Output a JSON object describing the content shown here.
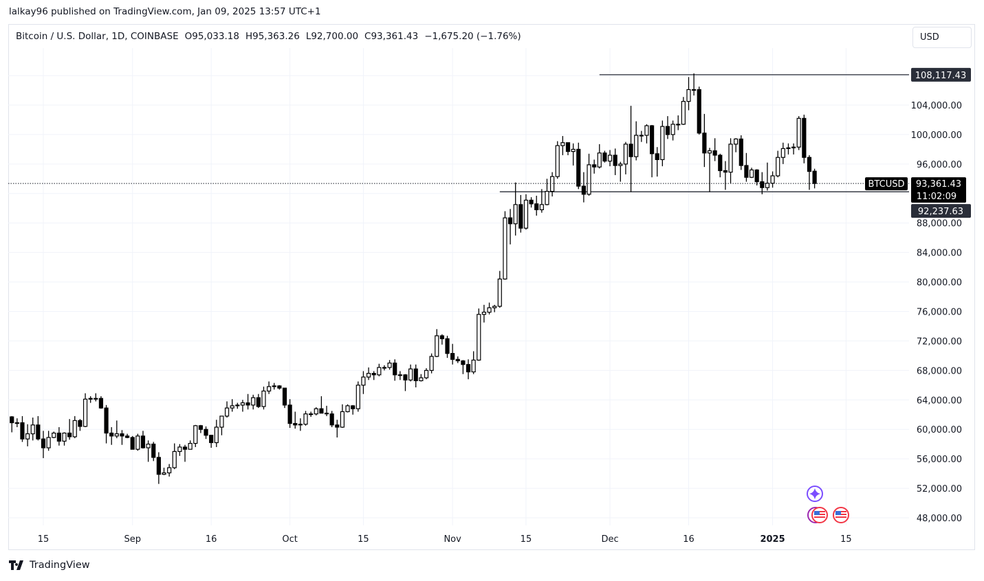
{
  "header": {
    "published": "lalkay96 published on TradingView.com, Jan 09, 2025 13:57 UTC+1"
  },
  "legend": {
    "symbol": "Bitcoin / U.S. Dollar, 1D, COINBASE",
    "open": "O95,033.18",
    "high": "H95,363.26",
    "low": "L92,700.00",
    "close": "C93,361.43",
    "change": "−1,675.20 (−1.76%)"
  },
  "currency_button": "USD",
  "footer": {
    "brand": "TradingView"
  },
  "icons": [
    "sparkle-event-icon",
    "us-flag-event-icon",
    "us-flag-event-icon"
  ],
  "colors": {
    "up_body": "#ffffff",
    "down_body": "#000000",
    "wick": "#000000",
    "grid": "#f0f3fa",
    "label_bg": "#2a2e39",
    "event_purple": "#7b4dff",
    "event_red": "#f23645"
  },
  "chart_data": {
    "type": "candlestick",
    "symbol_tag": "BTCUSD",
    "last_price": "93,361.43",
    "countdown": "11:02:09",
    "grid": true,
    "y_ticks": [
      {
        "v": 48000,
        "t": "48,000.00"
      },
      {
        "v": 52000,
        "t": "52,000.00"
      },
      {
        "v": 56000,
        "t": "56,000.00"
      },
      {
        "v": 60000,
        "t": "60,000.00"
      },
      {
        "v": 64000,
        "t": "64,000.00"
      },
      {
        "v": 68000,
        "t": "68,000.00"
      },
      {
        "v": 72000,
        "t": "72,000.00"
      },
      {
        "v": 76000,
        "t": "76,000.00"
      },
      {
        "v": 80000,
        "t": "80,000.00"
      },
      {
        "v": 84000,
        "t": "84,000.00"
      },
      {
        "v": 88000,
        "t": "88,000.00"
      },
      {
        "v": 96000,
        "t": "96,000.00"
      },
      {
        "v": 100000,
        "t": "100,000.00"
      },
      {
        "v": 104000,
        "t": "104,000.00"
      }
    ],
    "x_ticks": [
      {
        "d": "2024-08-15",
        "t": "15"
      },
      {
        "d": "2024-09-01",
        "t": "Sep"
      },
      {
        "d": "2024-09-16",
        "t": "16"
      },
      {
        "d": "2024-10-01",
        "t": "Oct"
      },
      {
        "d": "2024-10-15",
        "t": "15"
      },
      {
        "d": "2024-11-01",
        "t": "Nov"
      },
      {
        "d": "2024-11-15",
        "t": "15"
      },
      {
        "d": "2024-12-01",
        "t": "Dec"
      },
      {
        "d": "2024-12-16",
        "t": "16"
      },
      {
        "d": "2025-01-01",
        "t": "2025",
        "bold": true
      },
      {
        "d": "2025-01-15",
        "t": "15"
      }
    ],
    "horizontal_lines": [
      {
        "price": 108117.43,
        "label": "108,117.43",
        "from": "2024-11-29"
      },
      {
        "price": 92237.63,
        "label": "92,237.63",
        "from": "2024-11-10"
      }
    ],
    "candles_fields": [
      "date",
      "open",
      "high",
      "low",
      "close"
    ],
    "candles": [
      [
        "2024-08-09",
        61700,
        61800,
        59600,
        60900
      ],
      [
        "2024-08-10",
        60900,
        61500,
        60300,
        60900
      ],
      [
        "2024-08-11",
        60900,
        61800,
        58300,
        58700
      ],
      [
        "2024-08-12",
        58700,
        60700,
        57700,
        59400
      ],
      [
        "2024-08-13",
        59400,
        61600,
        58500,
        60600
      ],
      [
        "2024-08-14",
        60600,
        61800,
        58500,
        58700
      ],
      [
        "2024-08-15",
        58700,
        59800,
        56100,
        57500
      ],
      [
        "2024-08-16",
        57500,
        59800,
        57100,
        58900
      ],
      [
        "2024-08-17",
        58900,
        59700,
        58800,
        59500
      ],
      [
        "2024-08-18",
        59500,
        60300,
        57800,
        58400
      ],
      [
        "2024-08-19",
        58400,
        59600,
        57800,
        59500
      ],
      [
        "2024-08-20",
        59500,
        61400,
        58600,
        59000
      ],
      [
        "2024-08-21",
        59000,
        61800,
        58800,
        61200
      ],
      [
        "2024-08-22",
        61200,
        61400,
        59800,
        60400
      ],
      [
        "2024-08-23",
        60400,
        64900,
        60300,
        64100
      ],
      [
        "2024-08-24",
        64100,
        64500,
        63600,
        64200
      ],
      [
        "2024-08-25",
        64200,
        64900,
        63800,
        64200
      ],
      [
        "2024-08-26",
        64200,
        64500,
        62800,
        62900
      ],
      [
        "2024-08-27",
        62900,
        63300,
        58100,
        59500
      ],
      [
        "2024-08-28",
        59500,
        60300,
        57900,
        59100
      ],
      [
        "2024-08-29",
        59100,
        61200,
        58800,
        59400
      ],
      [
        "2024-08-30",
        59400,
        59900,
        57900,
        59100
      ],
      [
        "2024-08-31",
        59100,
        59400,
        58800,
        58900
      ],
      [
        "2024-09-01",
        58900,
        59100,
        57300,
        57300
      ],
      [
        "2024-09-02",
        57300,
        59400,
        57100,
        59100
      ],
      [
        "2024-09-03",
        59100,
        59800,
        57400,
        57500
      ],
      [
        "2024-09-04",
        57500,
        58500,
        55600,
        58000
      ],
      [
        "2024-09-05",
        58000,
        58300,
        55700,
        56200
      ],
      [
        "2024-09-06",
        56200,
        56900,
        52600,
        53900
      ],
      [
        "2024-09-07",
        53900,
        54800,
        53800,
        54100
      ],
      [
        "2024-09-08",
        54100,
        55300,
        53600,
        54800
      ],
      [
        "2024-09-09",
        54800,
        58100,
        54600,
        57000
      ],
      [
        "2024-09-10",
        57000,
        58000,
        56400,
        57600
      ],
      [
        "2024-09-11",
        57600,
        57900,
        55600,
        57300
      ],
      [
        "2024-09-12",
        57300,
        58500,
        57300,
        58100
      ],
      [
        "2024-09-13",
        58100,
        60600,
        57600,
        60500
      ],
      [
        "2024-09-14",
        60500,
        60600,
        59500,
        60000
      ],
      [
        "2024-09-15",
        60000,
        60400,
        58700,
        59200
      ],
      [
        "2024-09-16",
        59200,
        59200,
        57500,
        58200
      ],
      [
        "2024-09-17",
        58200,
        61300,
        57600,
        60300
      ],
      [
        "2024-09-18",
        60300,
        61800,
        59200,
        61800
      ],
      [
        "2024-09-19",
        61800,
        63800,
        61600,
        62900
      ],
      [
        "2024-09-20",
        62900,
        64100,
        62400,
        63200
      ],
      [
        "2024-09-21",
        63200,
        63600,
        62800,
        63300
      ],
      [
        "2024-09-22",
        63300,
        64000,
        62400,
        63600
      ],
      [
        "2024-09-23",
        63600,
        64800,
        62700,
        63300
      ],
      [
        "2024-09-24",
        63300,
        64700,
        62700,
        64300
      ],
      [
        "2024-09-25",
        64300,
        64800,
        62900,
        63100
      ],
      [
        "2024-09-26",
        63100,
        65800,
        62700,
        65200
      ],
      [
        "2024-09-27",
        65200,
        66500,
        64800,
        65800
      ],
      [
        "2024-09-28",
        65800,
        66300,
        65400,
        65900
      ],
      [
        "2024-09-29",
        65900,
        66000,
        65400,
        65600
      ],
      [
        "2024-09-30",
        65600,
        65600,
        62900,
        63300
      ],
      [
        "2024-10-01",
        63300,
        64100,
        60200,
        60800
      ],
      [
        "2024-10-02",
        60800,
        62400,
        60100,
        60600
      ],
      [
        "2024-10-03",
        60600,
        61500,
        59800,
        60700
      ],
      [
        "2024-10-04",
        60700,
        62500,
        60500,
        62100
      ],
      [
        "2024-10-05",
        62100,
        62400,
        61700,
        62100
      ],
      [
        "2024-10-06",
        62100,
        63000,
        61900,
        62800
      ],
      [
        "2024-10-07",
        62800,
        64500,
        62200,
        62200
      ],
      [
        "2024-10-08",
        62200,
        63200,
        61800,
        62100
      ],
      [
        "2024-10-09",
        62100,
        62500,
        60300,
        60600
      ],
      [
        "2024-10-10",
        60600,
        61300,
        58900,
        60300
      ],
      [
        "2024-10-11",
        60300,
        63400,
        60200,
        62400
      ],
      [
        "2024-10-12",
        62400,
        63400,
        62300,
        63200
      ],
      [
        "2024-10-13",
        63200,
        63300,
        62000,
        62800
      ],
      [
        "2024-10-14",
        62800,
        66500,
        62400,
        66000
      ],
      [
        "2024-10-15",
        66000,
        67900,
        64800,
        67100
      ],
      [
        "2024-10-16",
        67100,
        68400,
        66700,
        67600
      ],
      [
        "2024-10-17",
        67600,
        67900,
        66700,
        67400
      ],
      [
        "2024-10-18",
        67400,
        68900,
        67200,
        68400
      ],
      [
        "2024-10-19",
        68400,
        68700,
        68000,
        68400
      ],
      [
        "2024-10-20",
        68400,
        69400,
        68100,
        69000
      ],
      [
        "2024-10-21",
        69000,
        69500,
        66600,
        67400
      ],
      [
        "2024-10-22",
        67400,
        67900,
        66700,
        67400
      ],
      [
        "2024-10-23",
        67400,
        67500,
        65200,
        66700
      ],
      [
        "2024-10-24",
        66700,
        68800,
        66500,
        68200
      ],
      [
        "2024-10-25",
        68200,
        68800,
        65700,
        66600
      ],
      [
        "2024-10-26",
        66600,
        67500,
        66500,
        67000
      ],
      [
        "2024-10-27",
        67000,
        68300,
        66800,
        68000
      ],
      [
        "2024-10-28",
        68000,
        70300,
        67600,
        69900
      ],
      [
        "2024-10-29",
        69900,
        73600,
        69800,
        72700
      ],
      [
        "2024-10-30",
        72700,
        72900,
        71500,
        72300
      ],
      [
        "2024-10-31",
        72300,
        72700,
        69700,
        70300
      ],
      [
        "2024-11-01",
        70300,
        71600,
        68800,
        69500
      ],
      [
        "2024-11-02",
        69500,
        69900,
        69000,
        69300
      ],
      [
        "2024-11-03",
        69300,
        69400,
        67500,
        68800
      ],
      [
        "2024-11-04",
        68800,
        69500,
        66800,
        67800
      ],
      [
        "2024-11-05",
        67800,
        70600,
        67500,
        69400
      ],
      [
        "2024-11-06",
        69400,
        76400,
        69300,
        75600
      ],
      [
        "2024-11-07",
        75600,
        76900,
        74500,
        75900
      ],
      [
        "2024-11-08",
        75900,
        77200,
        75600,
        76500
      ],
      [
        "2024-11-09",
        76500,
        76900,
        75900,
        76700
      ],
      [
        "2024-11-10",
        76700,
        81500,
        76500,
        80400
      ],
      [
        "2024-11-11",
        80400,
        89600,
        80300,
        88700
      ],
      [
        "2024-11-12",
        88700,
        89900,
        85100,
        87900
      ],
      [
        "2024-11-13",
        87900,
        93500,
        86300,
        90500
      ],
      [
        "2024-11-14",
        90500,
        91800,
        86700,
        87300
      ],
      [
        "2024-11-15",
        87300,
        91900,
        87100,
        91100
      ],
      [
        "2024-11-16",
        91100,
        91500,
        90100,
        90600
      ],
      [
        "2024-11-17",
        90600,
        91700,
        89000,
        89800
      ],
      [
        "2024-11-18",
        89800,
        92600,
        89400,
        90500
      ],
      [
        "2024-11-19",
        90500,
        94000,
        90400,
        92300
      ],
      [
        "2024-11-20",
        92300,
        94900,
        91600,
        94300
      ],
      [
        "2024-11-21",
        94300,
        99100,
        94000,
        98500
      ],
      [
        "2024-11-22",
        98500,
        99800,
        97200,
        98900
      ],
      [
        "2024-11-23",
        98900,
        98900,
        97200,
        97700
      ],
      [
        "2024-11-24",
        97700,
        98800,
        95800,
        98000
      ],
      [
        "2024-11-25",
        98000,
        98900,
        92600,
        93000
      ],
      [
        "2024-11-26",
        93000,
        94900,
        90800,
        91900
      ],
      [
        "2024-11-27",
        91900,
        97400,
        91700,
        95900
      ],
      [
        "2024-11-28",
        95900,
        96600,
        94700,
        95600
      ],
      [
        "2024-11-29",
        95600,
        98700,
        95400,
        97500
      ],
      [
        "2024-11-30",
        97500,
        97800,
        96200,
        96400
      ],
      [
        "2024-12-01",
        96400,
        97900,
        95700,
        97200
      ],
      [
        "2024-12-02",
        97200,
        98100,
        94500,
        95800
      ],
      [
        "2024-12-03",
        95800,
        96300,
        93600,
        96000
      ],
      [
        "2024-12-04",
        96000,
        99000,
        94600,
        98700
      ],
      [
        "2024-12-05",
        98700,
        103900,
        92200,
        97000
      ],
      [
        "2024-12-06",
        97000,
        101800,
        96500,
        99900
      ],
      [
        "2024-12-07",
        99900,
        100500,
        99000,
        99900
      ],
      [
        "2024-12-08",
        99900,
        101400,
        98800,
        101200
      ],
      [
        "2024-12-09",
        101200,
        101300,
        94200,
        97400
      ],
      [
        "2024-12-10",
        97400,
        98300,
        94300,
        96600
      ],
      [
        "2024-12-11",
        96600,
        101900,
        95700,
        101100
      ],
      [
        "2024-12-12",
        101100,
        102500,
        99400,
        100000
      ],
      [
        "2024-12-13",
        100000,
        101900,
        99200,
        101400
      ],
      [
        "2024-12-14",
        101400,
        102600,
        100600,
        101400
      ],
      [
        "2024-12-15",
        101400,
        105100,
        101300,
        104500
      ],
      [
        "2024-12-16",
        104500,
        107800,
        103300,
        106100
      ],
      [
        "2024-12-17",
        106100,
        108300,
        105300,
        106100
      ],
      [
        "2024-12-18",
        106100,
        106500,
        100000,
        100200
      ],
      [
        "2024-12-19",
        100200,
        102800,
        95600,
        97500
      ],
      [
        "2024-12-20",
        97500,
        98200,
        92200,
        97800
      ],
      [
        "2024-12-21",
        97800,
        99500,
        96400,
        97200
      ],
      [
        "2024-12-22",
        97200,
        97400,
        94200,
        95100
      ],
      [
        "2024-12-23",
        95100,
        96400,
        92500,
        94900
      ],
      [
        "2024-12-24",
        94900,
        99500,
        93400,
        98700
      ],
      [
        "2024-12-25",
        98700,
        99500,
        97600,
        99400
      ],
      [
        "2024-12-26",
        99400,
        99900,
        95200,
        95800
      ],
      [
        "2024-12-27",
        95800,
        97500,
        93600,
        94200
      ],
      [
        "2024-12-28",
        94200,
        95500,
        94100,
        95200
      ],
      [
        "2024-12-29",
        95200,
        95300,
        93100,
        93600
      ],
      [
        "2024-12-30",
        93600,
        94900,
        91900,
        92800
      ],
      [
        "2024-12-31",
        92800,
        96200,
        92400,
        93400
      ],
      [
        "2025-01-01",
        93400,
        95000,
        92800,
        94400
      ],
      [
        "2025-01-02",
        94400,
        97800,
        94200,
        96900
      ],
      [
        "2025-01-03",
        96900,
        98900,
        96000,
        98100
      ],
      [
        "2025-01-04",
        98100,
        98800,
        97300,
        98200
      ],
      [
        "2025-01-05",
        98200,
        98800,
        97300,
        98300
      ],
      [
        "2025-01-06",
        98300,
        102500,
        97900,
        102200
      ],
      [
        "2025-01-07",
        102200,
        102700,
        96100,
        96900
      ],
      [
        "2025-01-08",
        96900,
        97200,
        92500,
        95000
      ],
      [
        "2025-01-09",
        95033.18,
        95363.26,
        92700,
        93361.43
      ]
    ]
  }
}
